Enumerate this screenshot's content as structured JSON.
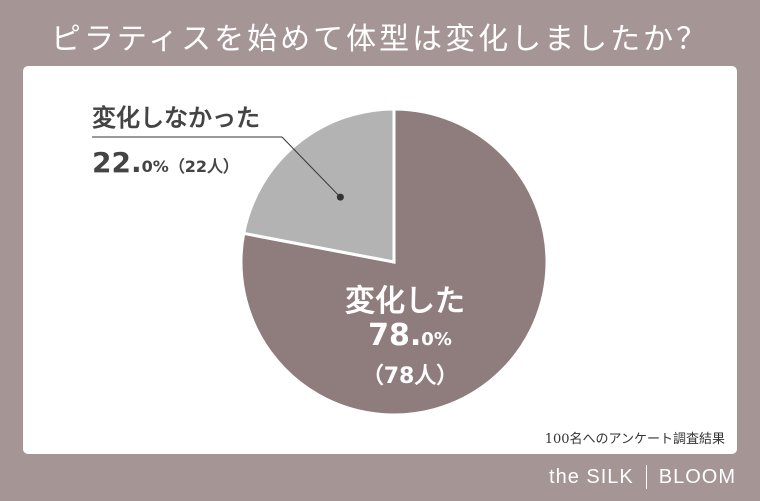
{
  "title": "ピラティスを始めて体型は変化しましたか？",
  "footer_note": "100名へのアンケート調査結果",
  "brand": {
    "left": "the SILK",
    "right": "BLOOM"
  },
  "chart_data": {
    "type": "pie",
    "title": "ピラティスを始めて体型は変化しましたか？",
    "slices": [
      {
        "label": "変化した",
        "value": 78.0,
        "percent_main": "78.",
        "percent_decimal": "0%",
        "count_text": "（78人）",
        "color": "#8f7c7c"
      },
      {
        "label": "変化しなかった",
        "value": 22.0,
        "percent_main": "22.",
        "percent_decimal": "0%",
        "count_text": "（22人）",
        "color": "#b3b3b3"
      }
    ]
  },
  "colors": {
    "background": "#a59595",
    "panel": "#ffffff",
    "changed": "#8f7c7c",
    "not_changed": "#b3b3b3"
  }
}
